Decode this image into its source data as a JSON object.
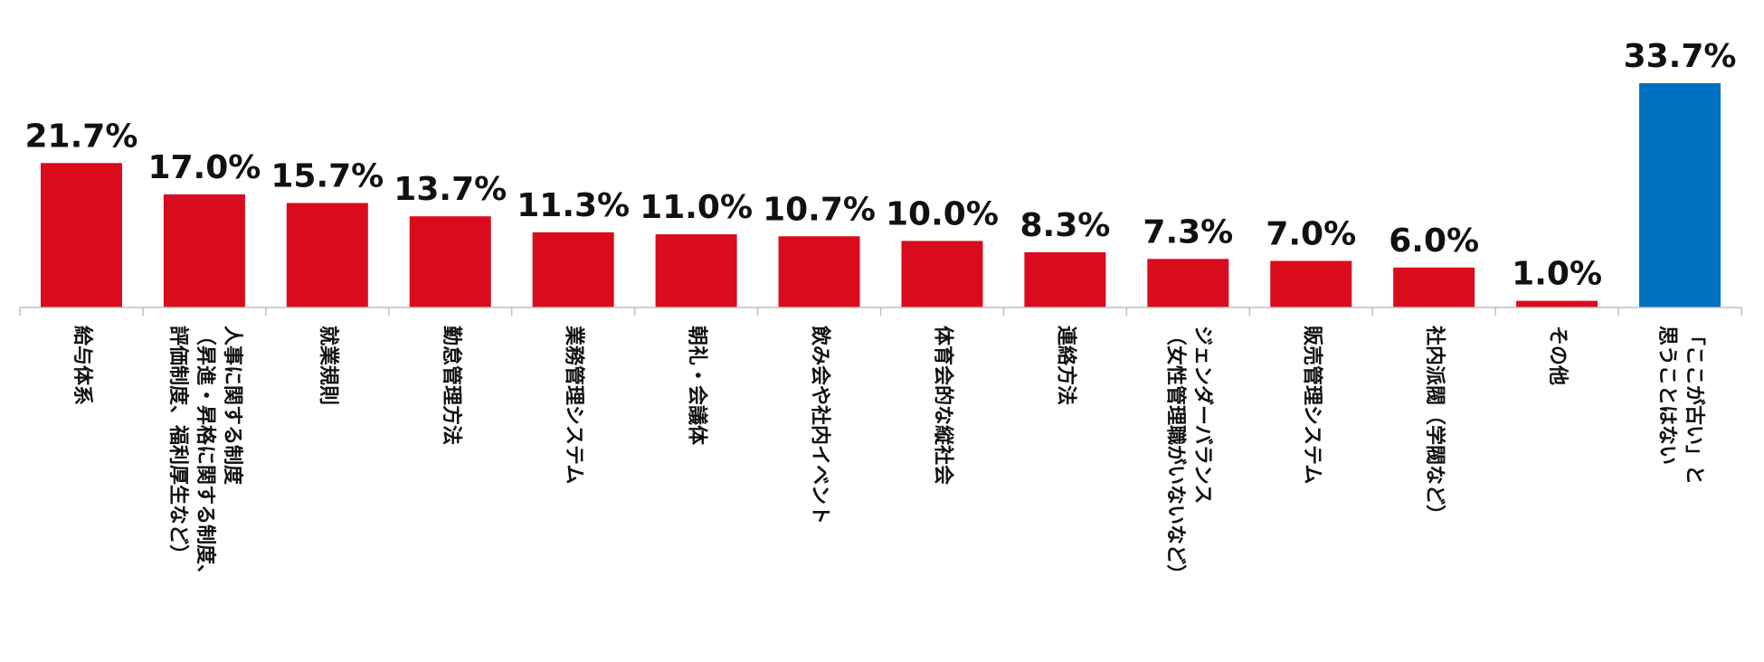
{
  "chart_data": {
    "type": "bar",
    "title": "",
    "xlabel": "",
    "ylabel": "",
    "ylim": [
      0,
      35
    ],
    "grid": false,
    "legend": false,
    "categories": [
      "給与体系",
      "人事に関する制度（昇進・昇格に関する制度、評価制度、福利厚生など）",
      "就業規則",
      "勤怠管理方法",
      "業務管理システム",
      "朝礼・会議体",
      "飲み会や社内イベント",
      "体育会的な縦社会",
      "連絡方法",
      "ジェンダーバランス（女性管理職がいないなど）",
      "販売管理システム",
      "社内派閥（学閥など）",
      "その他",
      "「ここが古い」と思うことはない"
    ],
    "tick_lines": [
      [
        "給与体系"
      ],
      [
        "人事に関する制度",
        "（昇進・昇格に関する制度、",
        "評価制度、福利厚生など）"
      ],
      [
        "就業規則"
      ],
      [
        "勤怠管理方法"
      ],
      [
        "業務管理システム"
      ],
      [
        "朝礼・会議体"
      ],
      [
        "飲み会や社内イベント"
      ],
      [
        "体育会的な縦社会"
      ],
      [
        "連絡方法"
      ],
      [
        "ジェンダーバランス",
        "（女性管理職がいないなど）"
      ],
      [
        "販売管理システム"
      ],
      [
        "社内派閥（学閥など）"
      ],
      [
        "その他"
      ],
      [
        "「ここが古い」と",
        "思うことはない"
      ]
    ],
    "values": [
      21.7,
      17.0,
      15.7,
      13.7,
      11.3,
      11.0,
      10.7,
      10.0,
      8.3,
      7.3,
      7.0,
      6.0,
      1.0,
      33.7
    ],
    "data_labels": [
      "21.7%",
      "17.0%",
      "15.7%",
      "13.7%",
      "11.3%",
      "11.0%",
      "10.7%",
      "10.0%",
      "8.3%",
      "7.3%",
      "7.0%",
      "6.0%",
      "1.0%",
      "33.7%"
    ],
    "colors": [
      "#d90b1c",
      "#d90b1c",
      "#d90b1c",
      "#d90b1c",
      "#d90b1c",
      "#d90b1c",
      "#d90b1c",
      "#d90b1c",
      "#d90b1c",
      "#d90b1c",
      "#d90b1c",
      "#d90b1c",
      "#d90b1c",
      "#0070c0"
    ],
    "axis_color": "#bfbfbf"
  }
}
